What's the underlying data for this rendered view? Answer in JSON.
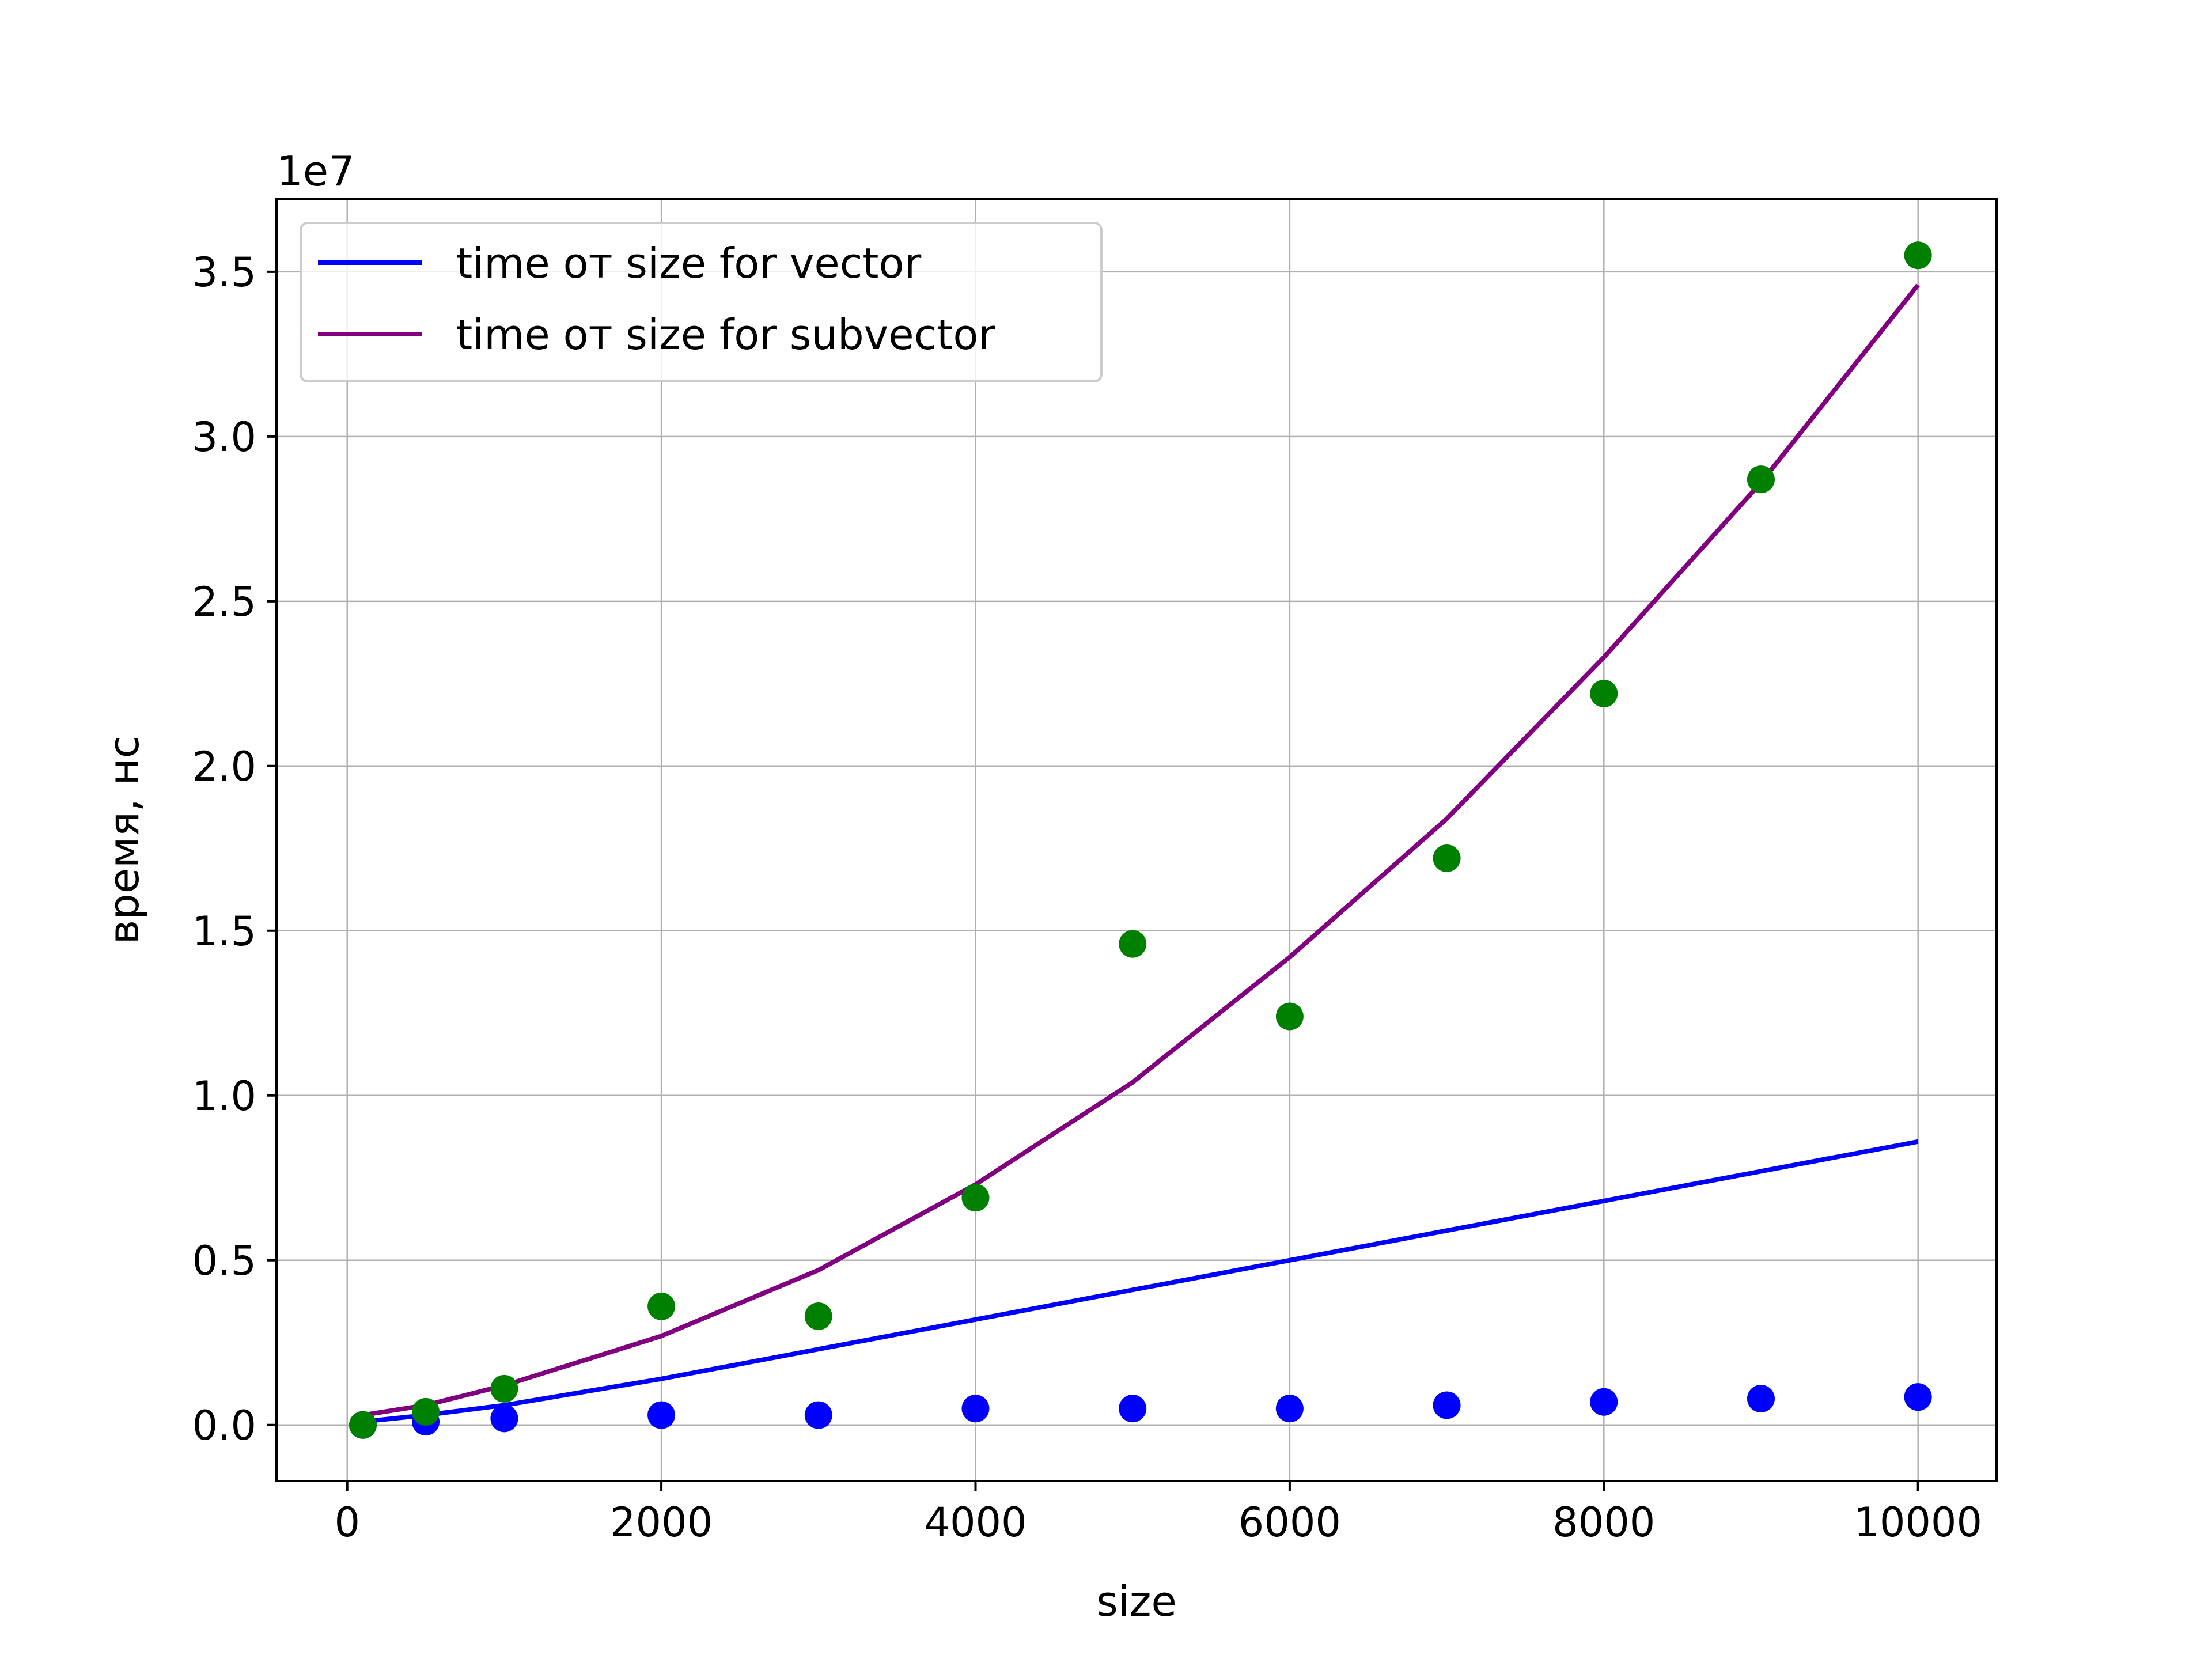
{
  "chart_data": {
    "type": "line",
    "xlabel": "size",
    "ylabel": "время, нс",
    "y_offset_label": "1e7",
    "xlim": [
      -450,
      10500
    ],
    "ylim": [
      -0.17,
      3.72
    ],
    "y_unit_multiplier": 10000000,
    "x_ticks": [
      0,
      2000,
      4000,
      6000,
      8000,
      10000
    ],
    "x_tick_labels": [
      "0",
      "2000",
      "4000",
      "6000",
      "8000",
      "10000"
    ],
    "y_ticks": [
      0.0,
      0.5,
      1.0,
      1.5,
      2.0,
      2.5,
      3.0,
      3.5
    ],
    "y_tick_labels": [
      "0.0",
      "0.5",
      "1.0",
      "1.5",
      "2.0",
      "2.5",
      "3.0",
      "3.5"
    ],
    "grid": true,
    "legend_position": "top-left",
    "series": [
      {
        "name": "time от size for vector",
        "kind": "line",
        "color": "#0000ff",
        "x": [
          100,
          500,
          1000,
          2000,
          3000,
          4000,
          5000,
          6000,
          7000,
          8000,
          9000,
          10000
        ],
        "y": [
          0.01,
          0.03,
          0.06,
          0.14,
          0.23,
          0.32,
          0.41,
          0.5,
          0.59,
          0.68,
          0.77,
          0.86
        ]
      },
      {
        "name": "time от size for subvector",
        "kind": "line",
        "color": "#800080",
        "x": [
          100,
          500,
          1000,
          2000,
          3000,
          4000,
          5000,
          6000,
          7000,
          8000,
          9000,
          10000
        ],
        "y": [
          0.03,
          0.06,
          0.12,
          0.27,
          0.47,
          0.73,
          1.04,
          1.42,
          1.84,
          2.33,
          2.86,
          3.46
        ]
      },
      {
        "kind": "scatter",
        "color": "#0000ff",
        "x": [
          100,
          500,
          1000,
          2000,
          3000,
          4000,
          5000,
          6000,
          7000,
          8000,
          9000,
          10000
        ],
        "y": [
          0.0,
          0.01,
          0.02,
          0.03,
          0.03,
          0.05,
          0.05,
          0.05,
          0.06,
          0.07,
          0.08,
          0.085
        ]
      },
      {
        "kind": "scatter",
        "color": "#008000",
        "x": [
          100,
          500,
          1000,
          2000,
          3000,
          4000,
          5000,
          6000,
          7000,
          8000,
          9000,
          10000
        ],
        "y": [
          0.0,
          0.04,
          0.11,
          0.36,
          0.33,
          0.69,
          1.46,
          1.24,
          1.72,
          2.22,
          2.87,
          3.55
        ]
      }
    ]
  }
}
